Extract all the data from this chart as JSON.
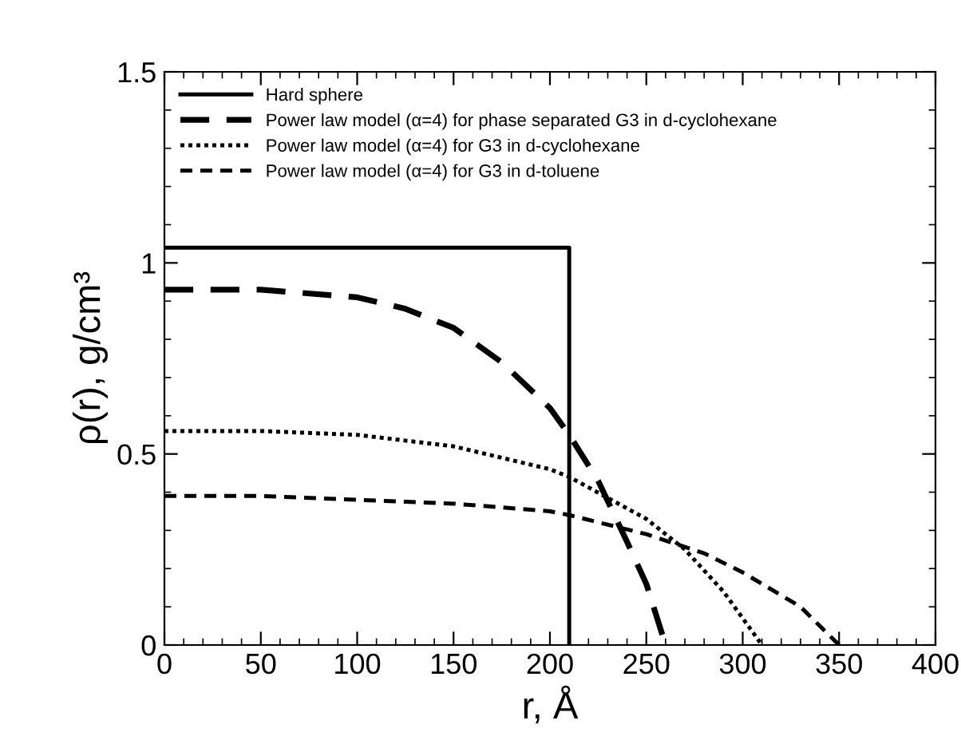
{
  "chart_data": {
    "type": "line",
    "xlabel": "r, Å",
    "ylabel": "ρ(r), g/cm³",
    "xlim": [
      0,
      400
    ],
    "ylim": [
      0,
      1.5
    ],
    "xticks": [
      0,
      50,
      100,
      150,
      200,
      250,
      300,
      350,
      400
    ],
    "yticks": [
      0,
      0.5,
      1,
      1.5
    ],
    "grid": false,
    "legend": "top left",
    "series": [
      {
        "name": "Hard sphere",
        "color": "#000000",
        "line_style": "solid",
        "x": [
          0,
          210,
          210
        ],
        "values": [
          1.04,
          1.04,
          0
        ]
      },
      {
        "name": "Power law model (α=4) for phase separated G3 in d-cyclohexane",
        "color": "#000000",
        "line_style": "longdash",
        "x": [
          0,
          50,
          100,
          125,
          150,
          175,
          200,
          210,
          225,
          240,
          250,
          260
        ],
        "values": [
          0.93,
          0.93,
          0.91,
          0.88,
          0.83,
          0.74,
          0.62,
          0.55,
          0.43,
          0.27,
          0.16,
          0
        ]
      },
      {
        "name": "Power law model (α=4) for G3 in d-cyclohexane",
        "color": "#000000",
        "line_style": "dotted",
        "x": [
          0,
          50,
          100,
          150,
          200,
          210,
          250,
          270,
          290,
          310
        ],
        "values": [
          0.56,
          0.56,
          0.55,
          0.52,
          0.46,
          0.44,
          0.33,
          0.25,
          0.14,
          0
        ]
      },
      {
        "name": "Power law model (α=4) for G3 in d-toluene",
        "color": "#000000",
        "line_style": "dashed",
        "x": [
          0,
          50,
          100,
          150,
          200,
          210,
          250,
          280,
          300,
          330,
          350
        ],
        "values": [
          0.39,
          0.39,
          0.38,
          0.37,
          0.35,
          0.34,
          0.29,
          0.24,
          0.19,
          0.1,
          0
        ]
      }
    ]
  }
}
